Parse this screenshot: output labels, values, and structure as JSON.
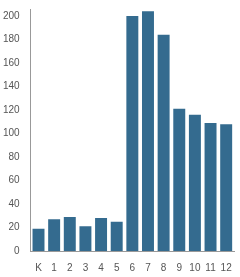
{
  "chart_data": {
    "type": "bar",
    "categories": [
      "K",
      "1",
      "2",
      "3",
      "4",
      "5",
      "6",
      "7",
      "8",
      "9",
      "10",
      "11",
      "12"
    ],
    "values": [
      19,
      27,
      29,
      21,
      28,
      25,
      200,
      204,
      184,
      121,
      116,
      109,
      108
    ],
    "color": "#346b8f",
    "ylim": [
      0,
      206
    ],
    "yticks": [
      0,
      20,
      40,
      60,
      80,
      100,
      120,
      140,
      160,
      180,
      200
    ],
    "grid": false
  }
}
